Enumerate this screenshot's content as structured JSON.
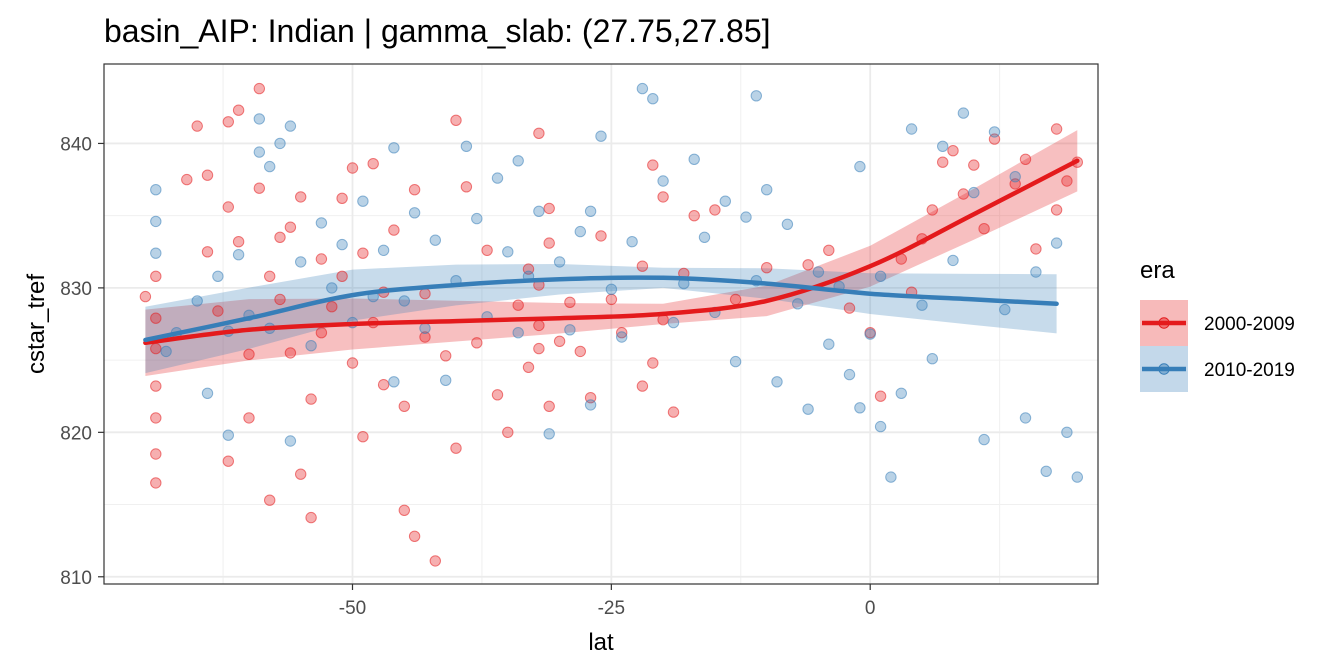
{
  "chart_data": {
    "type": "scatter",
    "title": "basin_AIP: Indian | gamma_slab:  (27.75,27.85]",
    "xlabel": "lat",
    "ylabel": "cstar_tref",
    "xlim": [
      -74,
      22
    ],
    "ylim": [
      809.5,
      845.5
    ],
    "x_ticks": [
      -50,
      -25,
      0
    ],
    "x_tick_labels": [
      "-50",
      "-25",
      "0"
    ],
    "y_ticks": [
      810,
      820,
      830,
      840
    ],
    "y_tick_labels": [
      "810",
      "820",
      "830",
      "840"
    ],
    "grid": true,
    "legend": {
      "title": "era",
      "position": "right"
    },
    "series": [
      {
        "name": "2000-2009",
        "color": "#e41a1c",
        "points": [
          [
            -70,
            829.4
          ],
          [
            -69,
            823.2
          ],
          [
            -69,
            821.0
          ],
          [
            -69,
            818.5
          ],
          [
            -69,
            816.5
          ],
          [
            -69,
            825.8
          ],
          [
            -69,
            827.9
          ],
          [
            -69,
            830.8
          ],
          [
            -66,
            837.5
          ],
          [
            -65,
            841.2
          ],
          [
            -64,
            837.8
          ],
          [
            -64,
            832.5
          ],
          [
            -63,
            828.4
          ],
          [
            -62,
            835.6
          ],
          [
            -62,
            841.5
          ],
          [
            -62,
            818.0
          ],
          [
            -61,
            842.3
          ],
          [
            -61,
            833.2
          ],
          [
            -60,
            825.4
          ],
          [
            -60,
            821.0
          ],
          [
            -59,
            843.8
          ],
          [
            -59,
            836.9
          ],
          [
            -58,
            830.8
          ],
          [
            -58,
            815.3
          ],
          [
            -57,
            829.2
          ],
          [
            -57,
            833.5
          ],
          [
            -56,
            834.2
          ],
          [
            -56,
            825.5
          ],
          [
            -55,
            836.3
          ],
          [
            -55,
            817.1
          ],
          [
            -54,
            814.1
          ],
          [
            -54,
            822.3
          ],
          [
            -53,
            832.0
          ],
          [
            -53,
            826.9
          ],
          [
            -52,
            828.7
          ],
          [
            -51,
            830.8
          ],
          [
            -51,
            836.2
          ],
          [
            -50,
            838.3
          ],
          [
            -50,
            824.8
          ],
          [
            -49,
            819.7
          ],
          [
            -49,
            832.4
          ],
          [
            -48,
            838.6
          ],
          [
            -48,
            827.6
          ],
          [
            -47,
            823.3
          ],
          [
            -47,
            829.7
          ],
          [
            -46,
            834.0
          ],
          [
            -45,
            814.6
          ],
          [
            -45,
            821.8
          ],
          [
            -44,
            836.8
          ],
          [
            -44,
            812.8
          ],
          [
            -43,
            826.6
          ],
          [
            -43,
            829.6
          ],
          [
            -42,
            811.1
          ],
          [
            -41,
            825.3
          ],
          [
            -40,
            841.6
          ],
          [
            -40,
            818.9
          ],
          [
            -39,
            837.0
          ],
          [
            -38,
            826.2
          ],
          [
            -37,
            832.6
          ],
          [
            -36,
            822.6
          ],
          [
            -35,
            820.0
          ],
          [
            -34,
            828.8
          ],
          [
            -33,
            831.3
          ],
          [
            -33,
            824.5
          ],
          [
            -32,
            840.7
          ],
          [
            -32,
            827.4
          ],
          [
            -32,
            825.8
          ],
          [
            -32,
            830.2
          ],
          [
            -31,
            835.5
          ],
          [
            -31,
            821.8
          ],
          [
            -31,
            833.1
          ],
          [
            -30,
            826.3
          ],
          [
            -29,
            829.0
          ],
          [
            -28,
            825.6
          ],
          [
            -27,
            822.4
          ],
          [
            -26,
            833.6
          ],
          [
            -25,
            829.2
          ],
          [
            -24,
            826.9
          ],
          [
            -22,
            831.5
          ],
          [
            -22,
            823.2
          ],
          [
            -21,
            838.5
          ],
          [
            -21,
            824.8
          ],
          [
            -20,
            836.3
          ],
          [
            -20,
            827.8
          ],
          [
            -19,
            821.4
          ],
          [
            -18,
            831.0
          ],
          [
            -17,
            835.0
          ],
          [
            -15,
            835.4
          ],
          [
            -13,
            829.2
          ],
          [
            -10,
            831.4
          ],
          [
            -6,
            831.6
          ],
          [
            -4,
            832.6
          ],
          [
            -2,
            828.6
          ],
          [
            0,
            826.9
          ],
          [
            1,
            822.5
          ],
          [
            3,
            832.0
          ],
          [
            4,
            829.7
          ],
          [
            5,
            833.4
          ],
          [
            6,
            835.4
          ],
          [
            7,
            838.7
          ],
          [
            8,
            839.5
          ],
          [
            9,
            836.5
          ],
          [
            10,
            838.5
          ],
          [
            11,
            834.1
          ],
          [
            12,
            840.3
          ],
          [
            14,
            837.2
          ],
          [
            15,
            838.9
          ],
          [
            16,
            832.7
          ],
          [
            18,
            841.0
          ],
          [
            18,
            835.4
          ],
          [
            19,
            837.4
          ],
          [
            20,
            838.7
          ]
        ],
        "trend": [
          [
            -70,
            826.2
          ],
          [
            -60,
            827.1
          ],
          [
            -50,
            827.5
          ],
          [
            -40,
            827.7
          ],
          [
            -30,
            827.9
          ],
          [
            -20,
            828.2
          ],
          [
            -10,
            829.1
          ],
          [
            0,
            831.5
          ],
          [
            10,
            835.1
          ],
          [
            20,
            838.8
          ]
        ]
      },
      {
        "name": "2010-2019",
        "color": "#377eb8",
        "points": [
          [
            -69,
            836.8
          ],
          [
            -69,
            834.6
          ],
          [
            -69,
            832.4
          ],
          [
            -68,
            825.6
          ],
          [
            -67,
            826.9
          ],
          [
            -65,
            829.1
          ],
          [
            -64,
            822.7
          ],
          [
            -63,
            830.8
          ],
          [
            -62,
            827.0
          ],
          [
            -62,
            819.8
          ],
          [
            -61,
            832.3
          ],
          [
            -60,
            828.1
          ],
          [
            -59,
            841.7
          ],
          [
            -59,
            839.4
          ],
          [
            -58,
            838.4
          ],
          [
            -58,
            827.2
          ],
          [
            -57,
            840.0
          ],
          [
            -56,
            841.2
          ],
          [
            -56,
            819.4
          ],
          [
            -55,
            831.8
          ],
          [
            -54,
            826.0
          ],
          [
            -53,
            834.5
          ],
          [
            -52,
            830.0
          ],
          [
            -51,
            833.0
          ],
          [
            -50,
            827.6
          ],
          [
            -49,
            836.0
          ],
          [
            -48,
            829.4
          ],
          [
            -47,
            832.6
          ],
          [
            -46,
            839.7
          ],
          [
            -46,
            823.5
          ],
          [
            -45,
            829.1
          ],
          [
            -44,
            835.2
          ],
          [
            -43,
            827.2
          ],
          [
            -42,
            833.3
          ],
          [
            -41,
            823.6
          ],
          [
            -40,
            830.5
          ],
          [
            -39,
            839.8
          ],
          [
            -38,
            834.8
          ],
          [
            -37,
            828.0
          ],
          [
            -36,
            837.6
          ],
          [
            -35,
            832.5
          ],
          [
            -34,
            838.8
          ],
          [
            -34,
            826.9
          ],
          [
            -33,
            830.8
          ],
          [
            -32,
            835.3
          ],
          [
            -31,
            819.9
          ],
          [
            -30,
            831.8
          ],
          [
            -29,
            827.1
          ],
          [
            -28,
            833.9
          ],
          [
            -27,
            835.3
          ],
          [
            -27,
            821.9
          ],
          [
            -26,
            840.5
          ],
          [
            -25,
            829.9
          ],
          [
            -24,
            826.6
          ],
          [
            -23,
            833.2
          ],
          [
            -22,
            843.8
          ],
          [
            -21,
            843.1
          ],
          [
            -20,
            837.4
          ],
          [
            -19,
            827.6
          ],
          [
            -18,
            830.3
          ],
          [
            -17,
            838.9
          ],
          [
            -16,
            833.5
          ],
          [
            -15,
            828.3
          ],
          [
            -14,
            836.0
          ],
          [
            -13,
            824.9
          ],
          [
            -12,
            834.9
          ],
          [
            -11,
            843.3
          ],
          [
            -11,
            830.5
          ],
          [
            -10,
            836.8
          ],
          [
            -9,
            823.5
          ],
          [
            -8,
            834.4
          ],
          [
            -7,
            828.9
          ],
          [
            -6,
            821.6
          ],
          [
            -5,
            831.1
          ],
          [
            -4,
            826.1
          ],
          [
            -3,
            830.1
          ],
          [
            -2,
            824.0
          ],
          [
            -1,
            838.4
          ],
          [
            -1,
            821.7
          ],
          [
            0,
            826.8
          ],
          [
            1,
            820.4
          ],
          [
            1,
            830.8
          ],
          [
            2,
            816.9
          ],
          [
            3,
            822.7
          ],
          [
            4,
            841.0
          ],
          [
            5,
            828.8
          ],
          [
            6,
            825.1
          ],
          [
            7,
            839.8
          ],
          [
            8,
            831.9
          ],
          [
            9,
            842.1
          ],
          [
            10,
            836.6
          ],
          [
            11,
            819.5
          ],
          [
            12,
            840.8
          ],
          [
            13,
            828.5
          ],
          [
            14,
            837.7
          ],
          [
            15,
            821.0
          ],
          [
            16,
            831.1
          ],
          [
            17,
            817.3
          ],
          [
            18,
            833.1
          ],
          [
            19,
            820.0
          ],
          [
            20,
            816.9
          ]
        ],
        "trend": [
          [
            -70,
            826.4
          ],
          [
            -60,
            827.9
          ],
          [
            -50,
            829.5
          ],
          [
            -40,
            830.2
          ],
          [
            -30,
            830.6
          ],
          [
            -20,
            830.7
          ],
          [
            -10,
            830.3
          ],
          [
            0,
            829.6
          ],
          [
            10,
            829.2
          ],
          [
            18,
            828.9
          ]
        ]
      }
    ]
  }
}
